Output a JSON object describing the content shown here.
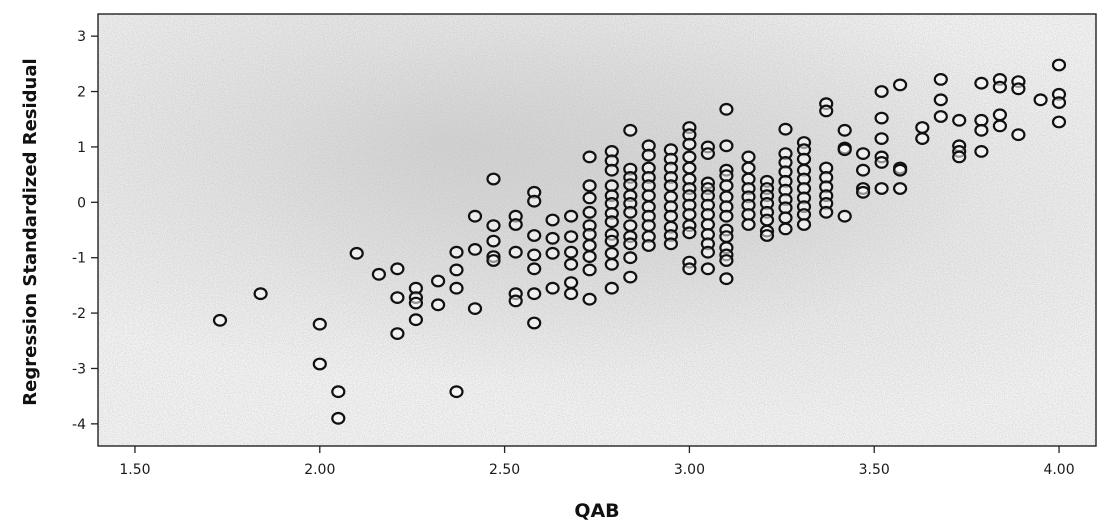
{
  "chart_data": {
    "type": "scatter",
    "title": "",
    "xlabel": "QAB",
    "ylabel": "Regression Standardized Residual",
    "xlim": [
      1.4,
      4.1
    ],
    "ylim": [
      -4.4,
      3.4
    ],
    "x_ticks": [
      1.5,
      2.0,
      2.5,
      3.0,
      3.5,
      4.0
    ],
    "x_tick_labels": [
      "1.50",
      "2.00",
      "2.50",
      "3.00",
      "3.50",
      "4.00"
    ],
    "y_ticks": [
      3,
      2,
      1,
      0,
      -1,
      -2,
      -3,
      -4
    ],
    "y_tick_labels": [
      "3",
      "2",
      "1",
      "0",
      "-1",
      "-2",
      "-3",
      "-4"
    ],
    "grid": false,
    "marker": "open-circle",
    "series": [
      {
        "points": [
          [
            1.73,
            -2.13
          ],
          [
            1.84,
            -1.65
          ],
          [
            2.0,
            -2.2
          ],
          [
            2.0,
            -2.92
          ],
          [
            2.05,
            -3.42
          ],
          [
            2.05,
            -3.9
          ],
          [
            2.1,
            -0.92
          ],
          [
            2.16,
            -1.3
          ],
          [
            2.21,
            -1.2
          ],
          [
            2.21,
            -1.72
          ],
          [
            2.21,
            -2.37
          ],
          [
            2.26,
            -1.55
          ],
          [
            2.26,
            -1.72
          ],
          [
            2.26,
            -1.82
          ],
          [
            2.26,
            -2.12
          ],
          [
            2.32,
            -1.42
          ],
          [
            2.32,
            -1.85
          ],
          [
            2.37,
            -0.9
          ],
          [
            2.37,
            -1.22
          ],
          [
            2.37,
            -1.55
          ],
          [
            2.37,
            -3.42
          ],
          [
            2.42,
            -0.25
          ],
          [
            2.42,
            -0.85
          ],
          [
            2.42,
            -1.92
          ],
          [
            2.47,
            0.42
          ],
          [
            2.47,
            -0.42
          ],
          [
            2.47,
            -0.7
          ],
          [
            2.47,
            -0.98
          ],
          [
            2.47,
            -1.05
          ],
          [
            2.53,
            -0.25
          ],
          [
            2.53,
            -0.4
          ],
          [
            2.53,
            -0.9
          ],
          [
            2.53,
            -1.65
          ],
          [
            2.53,
            -1.78
          ],
          [
            2.58,
            0.18
          ],
          [
            2.58,
            0.02
          ],
          [
            2.58,
            -0.6
          ],
          [
            2.58,
            -0.95
          ],
          [
            2.58,
            -1.2
          ],
          [
            2.58,
            -1.65
          ],
          [
            2.58,
            -2.18
          ],
          [
            2.63,
            -0.32
          ],
          [
            2.63,
            -0.65
          ],
          [
            2.63,
            -0.92
          ],
          [
            2.63,
            -1.55
          ],
          [
            2.68,
            -0.25
          ],
          [
            2.68,
            -0.62
          ],
          [
            2.68,
            -0.9
          ],
          [
            2.68,
            -1.12
          ],
          [
            2.68,
            -1.45
          ],
          [
            2.68,
            -1.65
          ],
          [
            2.73,
            0.82
          ],
          [
            2.73,
            0.3
          ],
          [
            2.73,
            0.08
          ],
          [
            2.73,
            -0.18
          ],
          [
            2.73,
            -0.42
          ],
          [
            2.73,
            -0.58
          ],
          [
            2.73,
            -0.78
          ],
          [
            2.73,
            -0.98
          ],
          [
            2.73,
            -1.22
          ],
          [
            2.73,
            -1.75
          ],
          [
            2.79,
            0.92
          ],
          [
            2.79,
            0.75
          ],
          [
            2.79,
            0.58
          ],
          [
            2.79,
            0.3
          ],
          [
            2.79,
            0.12
          ],
          [
            2.79,
            -0.02
          ],
          [
            2.79,
            -0.2
          ],
          [
            2.79,
            -0.35
          ],
          [
            2.79,
            -0.58
          ],
          [
            2.79,
            -0.7
          ],
          [
            2.79,
            -0.92
          ],
          [
            2.79,
            -1.12
          ],
          [
            2.79,
            -1.55
          ],
          [
            2.84,
            1.3
          ],
          [
            2.84,
            0.6
          ],
          [
            2.84,
            0.45
          ],
          [
            2.84,
            0.32
          ],
          [
            2.84,
            0.12
          ],
          [
            2.84,
            -0.02
          ],
          [
            2.84,
            -0.18
          ],
          [
            2.84,
            -0.42
          ],
          [
            2.84,
            -0.62
          ],
          [
            2.84,
            -0.75
          ],
          [
            2.84,
            -1.0
          ],
          [
            2.84,
            -1.35
          ],
          [
            2.89,
            1.02
          ],
          [
            2.89,
            0.85
          ],
          [
            2.89,
            0.62
          ],
          [
            2.89,
            0.45
          ],
          [
            2.89,
            0.3
          ],
          [
            2.89,
            0.12
          ],
          [
            2.89,
            -0.08
          ],
          [
            2.89,
            -0.25
          ],
          [
            2.89,
            -0.42
          ],
          [
            2.89,
            -0.62
          ],
          [
            2.89,
            -0.78
          ],
          [
            2.95,
            0.95
          ],
          [
            2.95,
            0.78
          ],
          [
            2.95,
            0.62
          ],
          [
            2.95,
            0.45
          ],
          [
            2.95,
            0.3
          ],
          [
            2.95,
            0.1
          ],
          [
            2.95,
            -0.08
          ],
          [
            2.95,
            -0.25
          ],
          [
            2.95,
            -0.45
          ],
          [
            2.95,
            -0.6
          ],
          [
            2.95,
            -0.75
          ],
          [
            3.0,
            1.35
          ],
          [
            3.0,
            1.22
          ],
          [
            3.0,
            1.05
          ],
          [
            3.0,
            0.82
          ],
          [
            3.0,
            0.62
          ],
          [
            3.0,
            0.42
          ],
          [
            3.0,
            0.25
          ],
          [
            3.0,
            0.12
          ],
          [
            3.0,
            -0.05
          ],
          [
            3.0,
            -0.22
          ],
          [
            3.0,
            -0.42
          ],
          [
            3.0,
            -0.55
          ],
          [
            3.0,
            -1.08
          ],
          [
            3.0,
            -1.2
          ],
          [
            3.05,
            1.0
          ],
          [
            3.05,
            0.88
          ],
          [
            3.05,
            0.35
          ],
          [
            3.05,
            0.25
          ],
          [
            3.05,
            0.12
          ],
          [
            3.05,
            -0.05
          ],
          [
            3.05,
            -0.22
          ],
          [
            3.05,
            -0.4
          ],
          [
            3.05,
            -0.58
          ],
          [
            3.05,
            -0.75
          ],
          [
            3.05,
            -0.9
          ],
          [
            3.05,
            -1.2
          ],
          [
            3.1,
            1.68
          ],
          [
            3.1,
            1.02
          ],
          [
            3.1,
            0.58
          ],
          [
            3.1,
            0.48
          ],
          [
            3.1,
            0.3
          ],
          [
            3.1,
            0.1
          ],
          [
            3.1,
            -0.08
          ],
          [
            3.1,
            -0.25
          ],
          [
            3.1,
            -0.5
          ],
          [
            3.1,
            -0.62
          ],
          [
            3.1,
            -0.82
          ],
          [
            3.1,
            -0.95
          ],
          [
            3.1,
            -1.05
          ],
          [
            3.1,
            -1.38
          ],
          [
            3.16,
            0.82
          ],
          [
            3.16,
            0.62
          ],
          [
            3.16,
            0.42
          ],
          [
            3.16,
            0.25
          ],
          [
            3.16,
            0.1
          ],
          [
            3.16,
            -0.05
          ],
          [
            3.16,
            -0.22
          ],
          [
            3.16,
            -0.4
          ],
          [
            3.21,
            0.38
          ],
          [
            3.21,
            0.25
          ],
          [
            3.21,
            0.12
          ],
          [
            3.21,
            -0.02
          ],
          [
            3.21,
            -0.18
          ],
          [
            3.21,
            -0.32
          ],
          [
            3.21,
            -0.52
          ],
          [
            3.21,
            -0.6
          ],
          [
            3.26,
            1.32
          ],
          [
            3.26,
            0.88
          ],
          [
            3.26,
            0.72
          ],
          [
            3.26,
            0.55
          ],
          [
            3.26,
            0.38
          ],
          [
            3.26,
            0.22
          ],
          [
            3.26,
            0.05
          ],
          [
            3.26,
            -0.1
          ],
          [
            3.26,
            -0.28
          ],
          [
            3.26,
            -0.48
          ],
          [
            3.31,
            1.08
          ],
          [
            3.31,
            0.95
          ],
          [
            3.31,
            0.78
          ],
          [
            3.31,
            0.58
          ],
          [
            3.31,
            0.42
          ],
          [
            3.31,
            0.25
          ],
          [
            3.31,
            0.08
          ],
          [
            3.31,
            -0.08
          ],
          [
            3.31,
            -0.22
          ],
          [
            3.31,
            -0.4
          ],
          [
            3.37,
            1.78
          ],
          [
            3.37,
            1.65
          ],
          [
            3.37,
            0.62
          ],
          [
            3.37,
            0.45
          ],
          [
            3.37,
            0.28
          ],
          [
            3.37,
            0.12
          ],
          [
            3.37,
            -0.02
          ],
          [
            3.37,
            -0.18
          ],
          [
            3.42,
            1.3
          ],
          [
            3.42,
            0.98
          ],
          [
            3.42,
            0.95
          ],
          [
            3.42,
            -0.25
          ],
          [
            3.47,
            0.88
          ],
          [
            3.47,
            0.58
          ],
          [
            3.47,
            0.25
          ],
          [
            3.47,
            0.18
          ],
          [
            3.52,
            2.0
          ],
          [
            3.52,
            1.52
          ],
          [
            3.52,
            1.15
          ],
          [
            3.52,
            0.82
          ],
          [
            3.52,
            0.72
          ],
          [
            3.52,
            0.25
          ],
          [
            3.57,
            2.12
          ],
          [
            3.57,
            0.62
          ],
          [
            3.57,
            0.58
          ],
          [
            3.57,
            0.25
          ],
          [
            3.63,
            1.35
          ],
          [
            3.63,
            1.15
          ],
          [
            3.68,
            2.22
          ],
          [
            3.68,
            1.85
          ],
          [
            3.68,
            1.55
          ],
          [
            3.73,
            1.48
          ],
          [
            3.73,
            1.02
          ],
          [
            3.73,
            0.92
          ],
          [
            3.73,
            0.82
          ],
          [
            3.79,
            2.15
          ],
          [
            3.79,
            1.48
          ],
          [
            3.79,
            1.3
          ],
          [
            3.79,
            0.92
          ],
          [
            3.84,
            2.22
          ],
          [
            3.84,
            2.08
          ],
          [
            3.84,
            1.58
          ],
          [
            3.84,
            1.38
          ],
          [
            3.89,
            2.18
          ],
          [
            3.89,
            2.05
          ],
          [
            3.89,
            1.22
          ],
          [
            3.95,
            1.85
          ],
          [
            4.0,
            2.48
          ],
          [
            4.0,
            1.95
          ],
          [
            4.0,
            1.8
          ],
          [
            4.0,
            1.45
          ]
        ]
      }
    ]
  }
}
